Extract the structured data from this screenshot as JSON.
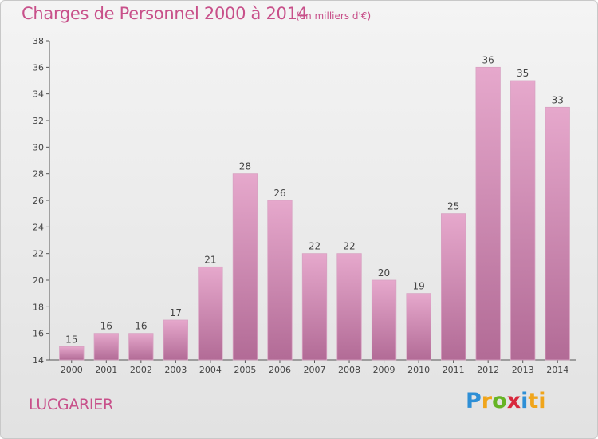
{
  "title": "Charges de Personnel 2000 à 2014",
  "subtitle": "(en milliers d'€)",
  "commune": "LUCGARIER",
  "logo": {
    "letters": [
      "P",
      "r",
      "o",
      "x",
      "i",
      "ti"
    ],
    "colors": [
      "#2e8fd6",
      "#f0a51b",
      "#66b424",
      "#d8283d",
      "#2e8fd6",
      "#f0a51b"
    ]
  },
  "colors": {
    "bar_top": "#e6a8cc",
    "bar_bottom": "#b26b96",
    "text_accent": "#c8508a"
  },
  "chart_data": {
    "type": "bar",
    "title": "Charges de Personnel 2000 à 2014",
    "subtitle": "(en milliers d'€)",
    "categories": [
      "2000",
      "2001",
      "2002",
      "2003",
      "2004",
      "2005",
      "2006",
      "2007",
      "2008",
      "2009",
      "2010",
      "2011",
      "2012",
      "2013",
      "2014"
    ],
    "values": [
      15,
      16,
      16,
      17,
      21,
      28,
      26,
      22,
      22,
      20,
      19,
      25,
      36,
      35,
      33
    ],
    "ylim": [
      14,
      38
    ],
    "yticks": [
      14,
      16,
      18,
      20,
      22,
      24,
      26,
      28,
      30,
      32,
      34,
      36,
      38
    ],
    "grid": false,
    "data_labels": true
  }
}
